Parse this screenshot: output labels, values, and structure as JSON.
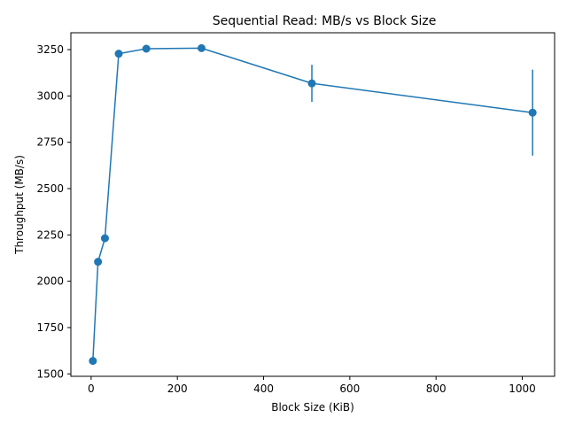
{
  "chart_data": {
    "type": "line",
    "title": "Sequential Read: MB/s vs Block Size",
    "xlabel": "Block Size (KiB)",
    "ylabel": "Throughput (MB/s)",
    "xlim": [
      -47,
      1075
    ],
    "ylim": [
      1487,
      3341
    ],
    "xticks": [
      0,
      200,
      400,
      600,
      800,
      1000
    ],
    "yticks": [
      1500,
      1750,
      2000,
      2250,
      2500,
      2750,
      3000,
      3250
    ],
    "grid": false,
    "legend": "none",
    "color": "#1f77b4",
    "series": [
      {
        "x": [
          4,
          16,
          32,
          64,
          128,
          256,
          512,
          1024
        ],
        "y": [
          1570,
          2105,
          2232,
          3228,
          3255,
          3258,
          3068,
          2910
        ],
        "yerr": [
          0,
          0,
          0,
          0,
          0,
          0,
          100,
          232
        ]
      }
    ]
  }
}
